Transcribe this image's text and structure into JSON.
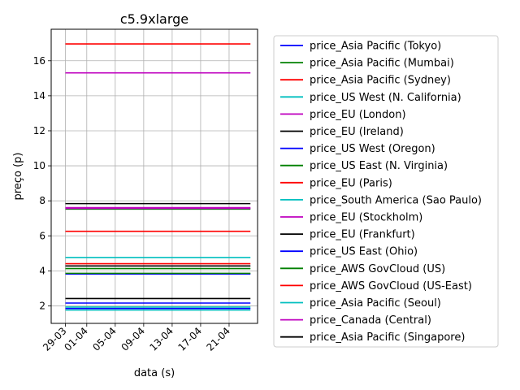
{
  "chart_data": {
    "type": "line",
    "title": "c5.9xlarge",
    "xlabel": "data (s)",
    "ylabel": "preço (p)",
    "xlim": [
      "2018-03-27",
      "2018-04-25"
    ],
    "ylim": [
      1.0,
      17.8
    ],
    "grid": true,
    "legend_position": "right",
    "x_ticks": [
      "29-03",
      "01-04",
      "05-04",
      "09-04",
      "13-04",
      "17-04",
      "21-04"
    ],
    "x_tick_dates": [
      "2018-03-29",
      "2018-04-01",
      "2018-04-05",
      "2018-04-09",
      "2018-04-13",
      "2018-04-17",
      "2018-04-21"
    ],
    "y_ticks": [
      2,
      4,
      6,
      8,
      10,
      12,
      14,
      16
    ],
    "x": [
      "2018-03-29",
      "2018-04-24"
    ],
    "series": [
      {
        "name": "price_Asia Pacific (Tokyo)",
        "color": "#0000ff",
        "values": [
          1.85,
          1.85
        ]
      },
      {
        "name": "price_Asia Pacific (Mumbai)",
        "color": "#008000",
        "values": [
          7.53,
          7.53
        ]
      },
      {
        "name": "price_Asia Pacific (Sydney)",
        "color": "#ff0000",
        "values": [
          16.96,
          16.96
        ]
      },
      {
        "name": "price_US West (N. California)",
        "color": "#00bfbf",
        "values": [
          1.93,
          1.93
        ]
      },
      {
        "name": "price_EU (London)",
        "color": "#bf00bf",
        "values": [
          15.31,
          15.31
        ]
      },
      {
        "name": "price_EU (Ireland)",
        "color": "#000000",
        "values": [
          2.42,
          2.42
        ]
      },
      {
        "name": "price_US West (Oregon)",
        "color": "#0000ff",
        "values": [
          3.82,
          3.82
        ]
      },
      {
        "name": "price_US East (N. Virginia)",
        "color": "#008000",
        "values": [
          4.13,
          4.13
        ]
      },
      {
        "name": "price_EU (Paris)",
        "color": "#ff0000",
        "values": [
          6.26,
          6.26
        ]
      },
      {
        "name": "price_South America (Sao Paulo)",
        "color": "#00bfbf",
        "values": [
          4.76,
          4.76
        ]
      },
      {
        "name": "price_EU (Stockholm)",
        "color": "#bf00bf",
        "values": [
          7.61,
          7.61
        ]
      },
      {
        "name": "price_EU (Frankfurt)",
        "color": "#000000",
        "values": [
          7.84,
          7.84
        ]
      },
      {
        "name": "price_US East (Ohio)",
        "color": "#0000ff",
        "values": [
          2.16,
          2.16
        ]
      },
      {
        "name": "price_AWS GovCloud (US)",
        "color": "#008000",
        "values": [
          3.86,
          3.86
        ]
      },
      {
        "name": "price_AWS GovCloud (US-East)",
        "color": "#ff0000",
        "values": [
          4.41,
          4.41
        ]
      },
      {
        "name": "price_Asia Pacific (Seoul)",
        "color": "#00bfbf",
        "values": [
          1.76,
          1.76
        ]
      },
      {
        "name": "price_Canada (Central)",
        "color": "#bf00bf",
        "values": [
          7.57,
          7.57
        ]
      },
      {
        "name": "price_Asia Pacific (Singapore)",
        "color": "#000000",
        "values": [
          4.28,
          4.28
        ]
      }
    ]
  }
}
